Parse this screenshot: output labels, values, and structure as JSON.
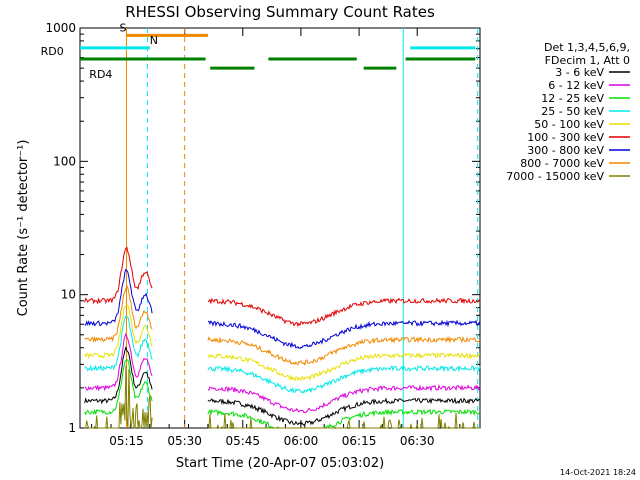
{
  "chart_data": {
    "type": "line",
    "title": "RHESSI Observing Summary Count Rates",
    "xlabel": "Start Time (20-Apr-07 05:03:02)",
    "ylabel": "Count Rate (s⁻¹ detector⁻¹)",
    "yscale": "log",
    "ylim": [
      1,
      1000
    ],
    "xlim": [
      5.05,
      6.77
    ],
    "x_ticks": [
      {
        "value": 5.25,
        "label": "05:15"
      },
      {
        "value": 5.5,
        "label": "05:30"
      },
      {
        "value": 5.75,
        "label": "05:45"
      },
      {
        "value": 6.0,
        "label": "06:00"
      },
      {
        "value": 6.25,
        "label": "06:15"
      },
      {
        "value": 6.5,
        "label": "06:30"
      }
    ],
    "y_ticks": [
      {
        "value": 1,
        "label": "1"
      },
      {
        "value": 10,
        "label": "10"
      },
      {
        "value": 100,
        "label": "100"
      },
      {
        "value": 1000,
        "label": "1000"
      }
    ],
    "legend_header": [
      "Det 1,3,4,5,6,9,",
      "FDecim 1, Att 0"
    ],
    "series": [
      {
        "name": "3 - 6 keV",
        "color": "#000000",
        "level": 1.6
      },
      {
        "name": "6 - 12 keV",
        "color": "#e000e0",
        "level": 2.0
      },
      {
        "name": "12 - 25 keV",
        "color": "#00e000",
        "level": 1.32
      },
      {
        "name": "25 - 50 keV",
        "color": "#00e8e8",
        "level": 2.8
      },
      {
        "name": "50 - 100 keV",
        "color": "#e8e000",
        "level": 3.5
      },
      {
        "name": "100 - 300 keV",
        "color": "#e00000",
        "level": 9.0
      },
      {
        "name": "300 - 800 keV",
        "color": "#0000d8",
        "level": 6.1
      },
      {
        "name": "800 - 7000 keV",
        "color": "#f08800",
        "level": 4.6
      },
      {
        "name": "7000 - 15000 keV",
        "color": "#808000",
        "level": 0.65
      }
    ],
    "segments": [
      [
        5.07,
        5.36
      ],
      [
        5.6,
        6.77
      ]
    ],
    "profile": {
      "peaks": [
        {
          "x": 5.25,
          "amp": 0.9,
          "w": 0.03
        },
        {
          "x": 5.33,
          "amp": 0.5,
          "w": 0.03
        }
      ],
      "dips": [
        {
          "x": 6.0,
          "amp": -0.4,
          "w": 0.18
        }
      ]
    },
    "flags": [
      {
        "name": "S",
        "color": "#f08800",
        "label_at": 5.22,
        "bars": [
          [
            5.25,
            5.6
          ]
        ],
        "level": 880
      },
      {
        "name": "N",
        "color": "#00e8e8",
        "label_at": 5.35,
        "bars": [
          [
            5.05,
            5.35
          ],
          [
            6.47,
            6.75
          ]
        ],
        "level": 710
      },
      {
        "name": "RD0",
        "color": "#008000",
        "label_at": 4.98,
        "bars": [
          [
            5.05,
            5.59
          ],
          [
            5.86,
            6.24
          ],
          [
            6.45,
            6.75
          ]
        ],
        "level": 585
      },
      {
        "name": "RD4",
        "color": "#008000",
        "label_at": 5.09,
        "bars": [
          [
            5.61,
            5.8
          ],
          [
            6.27,
            6.41
          ]
        ],
        "level": 500
      }
    ],
    "vlines": [
      {
        "x": 5.25,
        "color": "#f08800",
        "style": "solid"
      },
      {
        "x": 5.34,
        "color": "#00e8e8",
        "style": "dashed"
      },
      {
        "x": 5.5,
        "color": "#f08800",
        "style": "dashed"
      },
      {
        "x": 6.44,
        "color": "#00e8e8",
        "style": "solid"
      },
      {
        "x": 6.76,
        "color": "#00e8e8",
        "style": "dashed"
      }
    ]
  },
  "footer": {
    "date": "14-Oct-2021 18:24"
  }
}
